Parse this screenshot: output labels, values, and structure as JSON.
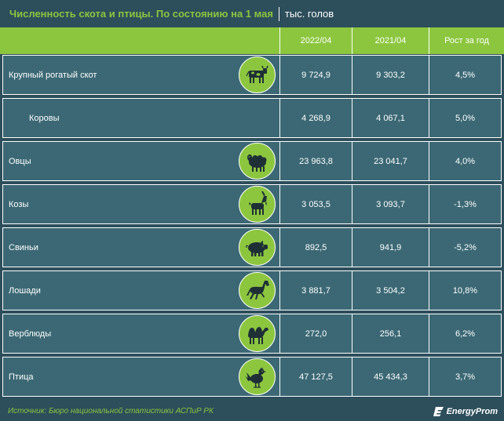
{
  "title": {
    "main": "Численность скота и птицы. По состоянию на 1 мая",
    "unit": "тыс. голов"
  },
  "columns": [
    "2022/04",
    "2021/04",
    "Рост за год"
  ],
  "rows": [
    {
      "name": "Крупный рогатый скот",
      "icon": "cow-icon",
      "v2022": "9 724,9",
      "v2021": "9 303,2",
      "growth": "4,5%"
    },
    {
      "name": "Коровы",
      "icon": "",
      "v2022": "4 268,9",
      "v2021": "4 067,1",
      "growth": "5,0%"
    },
    {
      "name": "Овцы",
      "icon": "sheep-icon",
      "v2022": "23 963,8",
      "v2021": "23 041,7",
      "growth": "4,0%"
    },
    {
      "name": "Козы",
      "icon": "goat-icon",
      "v2022": "3 053,5",
      "v2021": "3 093,7",
      "growth": "-1,3%"
    },
    {
      "name": "Свиньи",
      "icon": "pig-icon",
      "v2022": "892,5",
      "v2021": "941,9",
      "growth": "-5,2%"
    },
    {
      "name": "Лошади",
      "icon": "horse-icon",
      "v2022": "3 881,7",
      "v2021": "3 504,2",
      "growth": "10,8%"
    },
    {
      "name": "Верблюды",
      "icon": "camel-icon",
      "v2022": "272,0",
      "v2021": "256,1",
      "growth": "6,2%"
    },
    {
      "name": "Птица",
      "icon": "chicken-icon",
      "v2022": "47 127,5",
      "v2021": "45 434,3",
      "growth": "3,7%"
    }
  ],
  "footer": {
    "source": "Источник: Бюро национальной статистики АСПиР РК",
    "logo": "EnergyProm"
  },
  "colors": {
    "background": "#2d4e5b",
    "row": "#3b6874",
    "accent": "#8cc63f"
  }
}
